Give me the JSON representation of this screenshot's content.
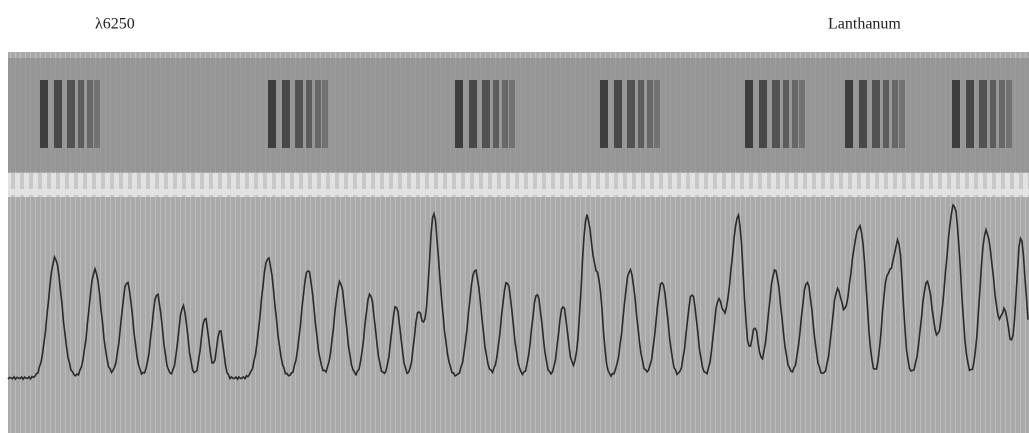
{
  "header": {
    "wavelength": "λ6250",
    "element": "Lanthanum"
  }
}
